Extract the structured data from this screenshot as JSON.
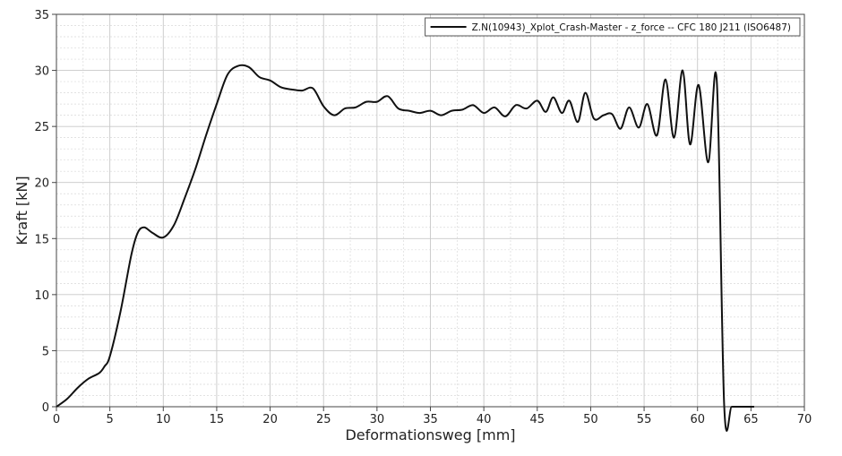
{
  "chart_data": {
    "type": "line",
    "xlabel": "Deformationsweg [mm]",
    "ylabel": "Kraft [kN]",
    "xlim": [
      0,
      70
    ],
    "ylim": [
      0,
      35
    ],
    "xticks": [
      0,
      5,
      10,
      15,
      20,
      25,
      30,
      35,
      40,
      45,
      50,
      55,
      60,
      65,
      70
    ],
    "yticks": [
      0,
      5,
      10,
      15,
      20,
      25,
      30,
      35
    ],
    "grid": true,
    "legend_position": "top-right",
    "colors": {
      "line": "#111111",
      "grid": "#d9d9d9",
      "frame": "#444444"
    },
    "series": [
      {
        "name": "Z.N(10943)_Xplot_Crash-Master - z_force -- CFC 180 J211 (ISO6487)",
        "x": [
          0,
          1,
          2,
          3,
          4,
          4.5,
          5,
          6,
          7,
          7.6,
          8.2,
          9,
          10,
          11,
          12,
          13,
          14,
          15,
          16,
          17,
          18,
          19,
          20,
          21,
          22,
          23,
          24,
          25,
          26,
          27,
          28,
          29,
          30,
          31,
          32,
          33,
          34,
          35,
          36,
          37,
          38,
          39,
          40,
          41,
          42,
          43,
          44,
          45,
          45.8,
          46.5,
          47.3,
          48,
          48.8,
          49.5,
          50.3,
          51.2,
          52,
          52.8,
          53.6,
          54.5,
          55.3,
          56.2,
          57,
          57.8,
          58.6,
          59.3,
          60.1,
          61,
          61.8,
          62.5,
          63.2,
          64,
          64.6,
          65.0,
          65.1,
          65.3
        ],
        "y": [
          0,
          0.7,
          1.7,
          2.5,
          3.0,
          3.6,
          4.5,
          8.5,
          13.5,
          15.5,
          16.0,
          15.5,
          15.1,
          16.2,
          18.6,
          21.2,
          24.2,
          27.0,
          29.6,
          30.4,
          30.3,
          29.4,
          29.1,
          28.5,
          28.3,
          28.2,
          28.4,
          26.8,
          26.0,
          26.6,
          26.7,
          27.2,
          27.2,
          27.7,
          26.6,
          26.4,
          26.2,
          26.4,
          26.0,
          26.4,
          26.5,
          26.9,
          26.2,
          26.7,
          25.9,
          26.9,
          26.6,
          27.3,
          26.3,
          27.6,
          26.2,
          27.3,
          25.4,
          28.0,
          25.7,
          26.0,
          26.1,
          24.8,
          26.7,
          24.9,
          27.0,
          24.2,
          29.2,
          24.0,
          30.0,
          23.4,
          28.7,
          21.8,
          29.1,
          0.0,
          0.0,
          0.0,
          0.0,
          0.0,
          0.0,
          0.0
        ]
      }
    ]
  }
}
